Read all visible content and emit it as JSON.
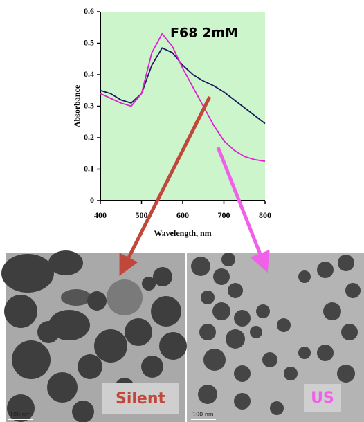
{
  "chart_data": {
    "type": "line",
    "annotation": "F68 2mM",
    "xlabel": "Wavelength, nm",
    "ylabel": "Absorbance",
    "x": [
      400,
      425,
      450,
      475,
      500,
      525,
      550,
      575,
      600,
      625,
      650,
      675,
      700,
      725,
      750,
      775,
      800
    ],
    "series": [
      {
        "color": "#1a1a5e",
        "values": [
          0.35,
          0.34,
          0.32,
          0.31,
          0.34,
          0.43,
          0.485,
          0.47,
          0.43,
          0.4,
          0.38,
          0.365,
          0.345,
          0.32,
          0.295,
          0.27,
          0.245
        ]
      },
      {
        "color": "#e020d0",
        "values": [
          0.34,
          0.325,
          0.31,
          0.3,
          0.34,
          0.47,
          0.53,
          0.49,
          0.42,
          0.36,
          0.3,
          0.24,
          0.19,
          0.16,
          0.14,
          0.13,
          0.125
        ]
      }
    ],
    "xlim": [
      400,
      800
    ],
    "xticks": [
      400,
      500,
      600,
      700,
      800
    ],
    "ylim": [
      0,
      0.6
    ],
    "yticks": [
      0,
      0.1,
      0.2,
      0.3,
      0.4,
      0.5,
      0.6
    ],
    "background": "#ccf5cc"
  },
  "images": [
    {
      "label": "Silent",
      "scale": "100 nm"
    },
    {
      "label": "US",
      "scale": "100 nm"
    }
  ]
}
